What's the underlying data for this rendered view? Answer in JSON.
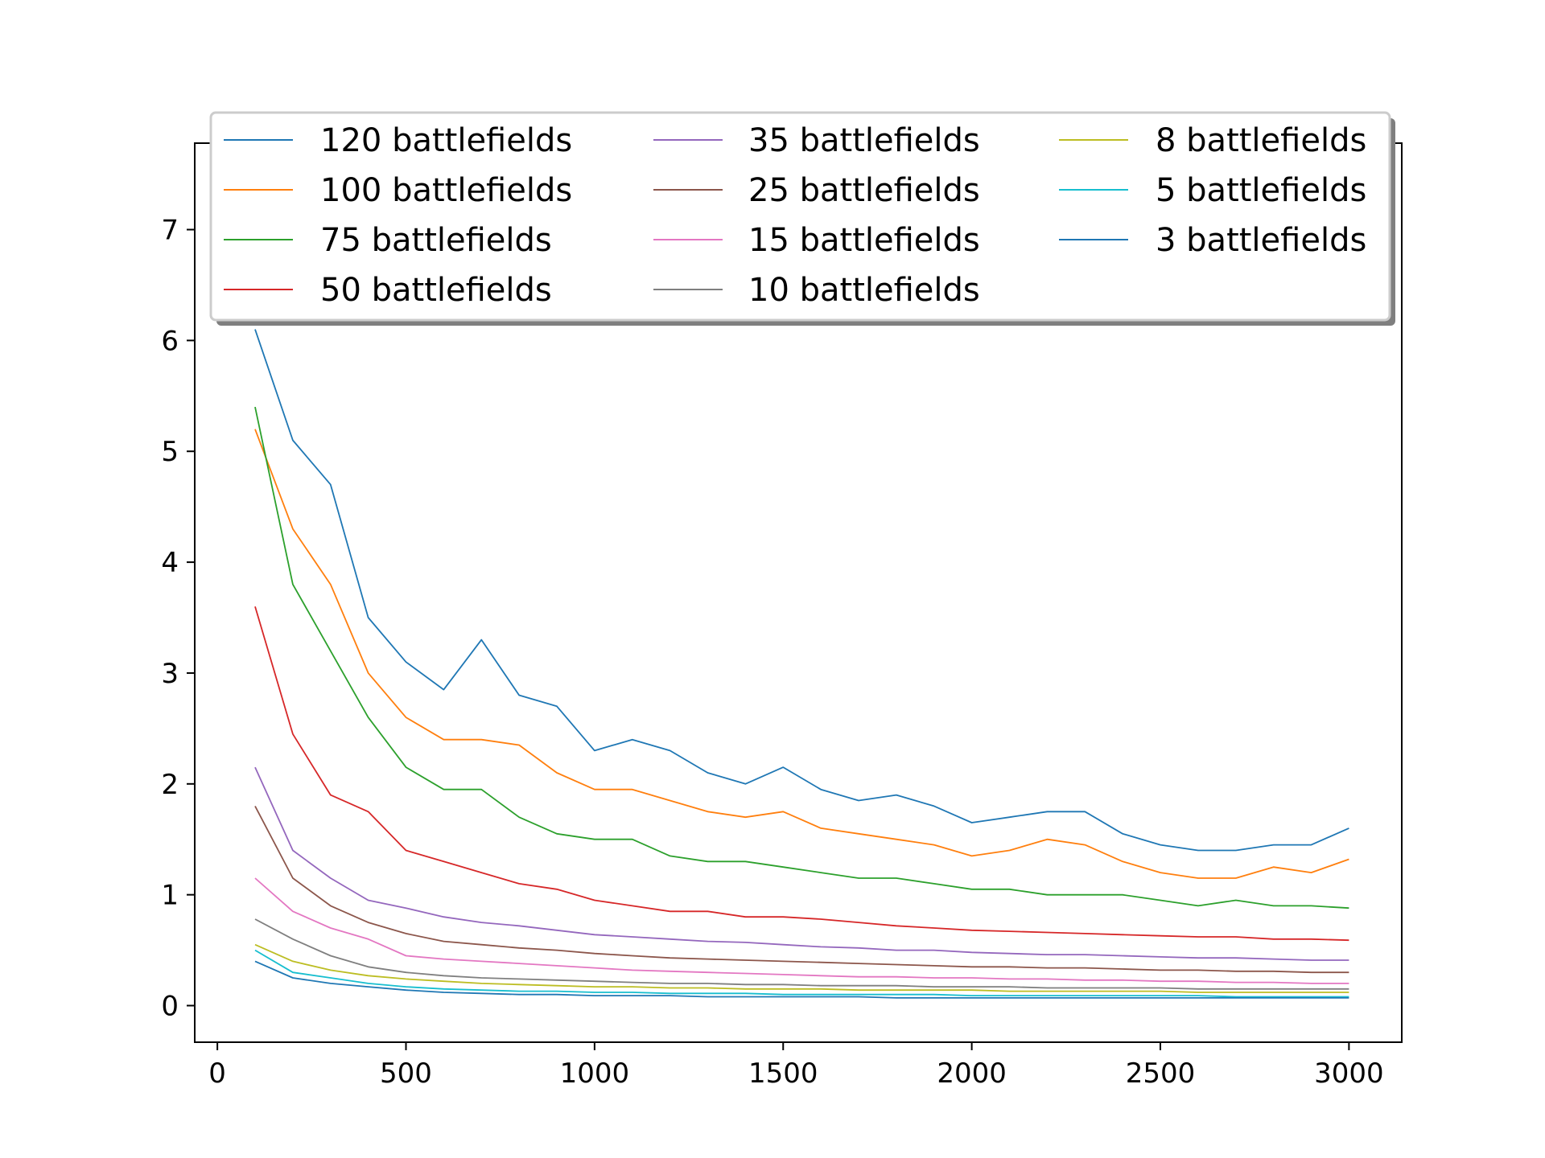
{
  "chart_data": {
    "type": "line",
    "title": "",
    "xlabel": "",
    "ylabel": "",
    "xlim": [
      -60,
      3140
    ],
    "ylim": [
      -0.33,
      7.78
    ],
    "xticks": [
      0,
      500,
      1000,
      1500,
      2000,
      2500,
      3000
    ],
    "yticks": [
      0,
      1,
      2,
      3,
      4,
      5,
      6,
      7
    ],
    "grid": false,
    "legend": {
      "placement": "top",
      "columns": 3
    },
    "x": [
      100,
      200,
      300,
      400,
      500,
      600,
      700,
      800,
      900,
      1000,
      1100,
      1200,
      1300,
      1400,
      1500,
      1600,
      1700,
      1800,
      1900,
      2000,
      2100,
      2200,
      2300,
      2400,
      2500,
      2600,
      2700,
      2800,
      2900,
      3000
    ],
    "series": [
      {
        "name": "120 battlefields",
        "color": "#1f77b4",
        "values": [
          6.1,
          5.1,
          4.7,
          3.5,
          3.1,
          2.85,
          3.3,
          2.8,
          2.7,
          2.3,
          2.4,
          2.3,
          2.1,
          2.0,
          2.15,
          1.95,
          1.85,
          1.9,
          1.8,
          1.65,
          1.7,
          1.75,
          1.75,
          1.55,
          1.45,
          1.4,
          1.4,
          1.45,
          1.45,
          1.6
        ]
      },
      {
        "name": "100 battlefields",
        "color": "#ff7f0e",
        "values": [
          5.2,
          4.3,
          3.8,
          3.0,
          2.6,
          2.4,
          2.4,
          2.35,
          2.1,
          1.95,
          1.95,
          1.85,
          1.75,
          1.7,
          1.75,
          1.6,
          1.55,
          1.5,
          1.45,
          1.35,
          1.4,
          1.5,
          1.45,
          1.3,
          1.2,
          1.15,
          1.15,
          1.25,
          1.2,
          1.32
        ]
      },
      {
        "name": "75 battlefields",
        "color": "#2ca02c",
        "values": [
          5.4,
          3.8,
          3.2,
          2.6,
          2.15,
          1.95,
          1.95,
          1.7,
          1.55,
          1.5,
          1.5,
          1.35,
          1.3,
          1.3,
          1.25,
          1.2,
          1.15,
          1.15,
          1.1,
          1.05,
          1.05,
          1.0,
          1.0,
          1.0,
          0.95,
          0.9,
          0.95,
          0.9,
          0.9,
          0.88
        ]
      },
      {
        "name": "50 battlefields",
        "color": "#d62728",
        "values": [
          3.6,
          2.45,
          1.9,
          1.75,
          1.4,
          1.3,
          1.2,
          1.1,
          1.05,
          0.95,
          0.9,
          0.85,
          0.85,
          0.8,
          0.8,
          0.78,
          0.75,
          0.72,
          0.7,
          0.68,
          0.67,
          0.66,
          0.65,
          0.64,
          0.63,
          0.62,
          0.62,
          0.6,
          0.6,
          0.59
        ]
      },
      {
        "name": "35 battlefields",
        "color": "#9467bd",
        "values": [
          2.15,
          1.4,
          1.15,
          0.95,
          0.88,
          0.8,
          0.75,
          0.72,
          0.68,
          0.64,
          0.62,
          0.6,
          0.58,
          0.57,
          0.55,
          0.53,
          0.52,
          0.5,
          0.5,
          0.48,
          0.47,
          0.46,
          0.46,
          0.45,
          0.44,
          0.43,
          0.43,
          0.42,
          0.41,
          0.41
        ]
      },
      {
        "name": "25 battlefields",
        "color": "#8c564b",
        "values": [
          1.8,
          1.15,
          0.9,
          0.75,
          0.65,
          0.58,
          0.55,
          0.52,
          0.5,
          0.47,
          0.45,
          0.43,
          0.42,
          0.41,
          0.4,
          0.39,
          0.38,
          0.37,
          0.36,
          0.35,
          0.35,
          0.34,
          0.34,
          0.33,
          0.32,
          0.32,
          0.31,
          0.31,
          0.3,
          0.3
        ]
      },
      {
        "name": "15 battlefields",
        "color": "#e377c2",
        "values": [
          1.15,
          0.85,
          0.7,
          0.6,
          0.45,
          0.42,
          0.4,
          0.38,
          0.36,
          0.34,
          0.32,
          0.31,
          0.3,
          0.29,
          0.28,
          0.27,
          0.26,
          0.26,
          0.25,
          0.25,
          0.24,
          0.24,
          0.23,
          0.23,
          0.22,
          0.22,
          0.21,
          0.21,
          0.2,
          0.2
        ]
      },
      {
        "name": "10 battlefields",
        "color": "#7f7f7f",
        "values": [
          0.78,
          0.6,
          0.45,
          0.35,
          0.3,
          0.27,
          0.25,
          0.24,
          0.23,
          0.22,
          0.21,
          0.2,
          0.2,
          0.19,
          0.19,
          0.18,
          0.18,
          0.18,
          0.17,
          0.17,
          0.17,
          0.16,
          0.16,
          0.16,
          0.16,
          0.15,
          0.15,
          0.15,
          0.15,
          0.15
        ]
      },
      {
        "name": "8 battlefields",
        "color": "#bcbd22",
        "values": [
          0.55,
          0.4,
          0.32,
          0.27,
          0.24,
          0.22,
          0.2,
          0.19,
          0.18,
          0.17,
          0.17,
          0.16,
          0.16,
          0.15,
          0.15,
          0.15,
          0.14,
          0.14,
          0.14,
          0.14,
          0.13,
          0.13,
          0.13,
          0.13,
          0.13,
          0.12,
          0.12,
          0.12,
          0.12,
          0.12
        ]
      },
      {
        "name": "5 battlefields",
        "color": "#17becf",
        "values": [
          0.5,
          0.3,
          0.25,
          0.2,
          0.17,
          0.15,
          0.14,
          0.13,
          0.13,
          0.12,
          0.12,
          0.11,
          0.11,
          0.11,
          0.1,
          0.1,
          0.1,
          0.1,
          0.1,
          0.09,
          0.09,
          0.09,
          0.09,
          0.09,
          0.09,
          0.09,
          0.08,
          0.08,
          0.08,
          0.08
        ]
      },
      {
        "name": "3 battlefields",
        "color": "#1f77b4",
        "values": [
          0.4,
          0.25,
          0.2,
          0.17,
          0.14,
          0.12,
          0.11,
          0.1,
          0.1,
          0.09,
          0.09,
          0.09,
          0.08,
          0.08,
          0.08,
          0.08,
          0.08,
          0.07,
          0.07,
          0.07,
          0.07,
          0.07,
          0.07,
          0.07,
          0.07,
          0.07,
          0.07,
          0.07,
          0.07,
          0.07
        ]
      }
    ]
  }
}
